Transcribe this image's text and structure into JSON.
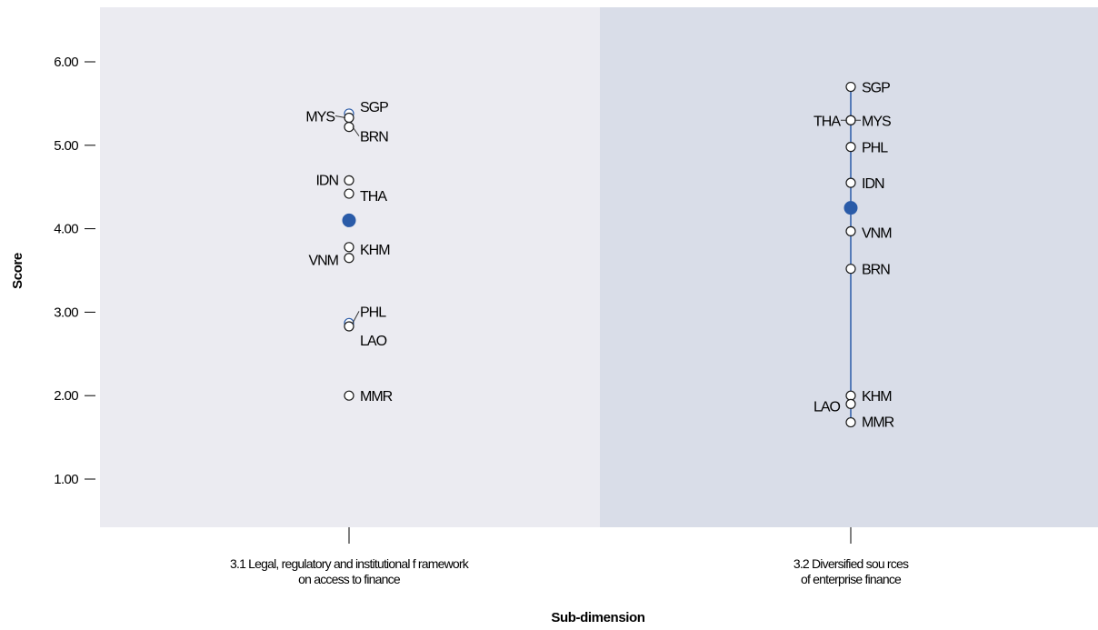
{
  "chart_data": {
    "type": "scatter",
    "xlabel": "Sub-dimension",
    "ylabel": "Score",
    "ylim": [
      0.5,
      6.6
    ],
    "yticks": [
      "1.00",
      "2.00",
      "3.00",
      "4.00",
      "5.00",
      "6.00"
    ],
    "grid": false,
    "categories": [
      {
        "label_lines": [
          "3.1 Legal, regulatory and institutional f ramework",
          "on access to finance"
        ],
        "average": 4.1,
        "points": [
          {
            "code": "SGP",
            "value": 5.38
          },
          {
            "code": "MYS",
            "value": 5.33
          },
          {
            "code": "BRN",
            "value": 5.22
          },
          {
            "code": "IDN",
            "value": 4.58
          },
          {
            "code": "THA",
            "value": 4.42
          },
          {
            "code": "KHM",
            "value": 3.78
          },
          {
            "code": "VNM",
            "value": 3.65
          },
          {
            "code": "PHL",
            "value": 2.87
          },
          {
            "code": "LAO",
            "value": 2.83
          },
          {
            "code": "MMR",
            "value": 2.0
          }
        ]
      },
      {
        "label_lines": [
          "3.2 Diversified sou rces",
          "of enterprise finance"
        ],
        "average": 4.25,
        "points": [
          {
            "code": "SGP",
            "value": 5.7
          },
          {
            "code": "THA",
            "value": 5.3
          },
          {
            "code": "MYS",
            "value": 5.3
          },
          {
            "code": "PHL",
            "value": 4.98
          },
          {
            "code": "IDN",
            "value": 4.55
          },
          {
            "code": "VNM",
            "value": 3.97
          },
          {
            "code": "BRN",
            "value": 3.52
          },
          {
            "code": "KHM",
            "value": 2.0
          },
          {
            "code": "LAO",
            "value": 1.9
          },
          {
            "code": "MMR",
            "value": 1.68
          }
        ]
      }
    ],
    "colors": {
      "panel_left": "#ebebf1",
      "panel_right": "#d9dde8",
      "accent": "#2a5ba8"
    }
  }
}
